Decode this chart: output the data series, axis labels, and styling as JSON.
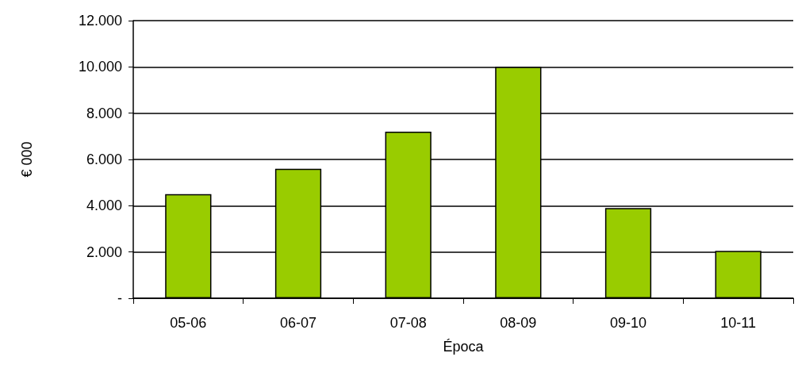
{
  "chart_data": {
    "type": "bar",
    "xlabel": "Época",
    "ylabel": "€ 000",
    "categories": [
      "05-06",
      "06-07",
      "07-08",
      "08-09",
      "09-10",
      "10-11"
    ],
    "values": [
      4500,
      5600,
      7200,
      10000,
      3900,
      2050
    ],
    "color": "#99cc00",
    "ylim": [
      0,
      12000
    ],
    "yticks": [
      {
        "value": 0,
        "label": "-"
      },
      {
        "value": 2000,
        "label": "2.000"
      },
      {
        "value": 4000,
        "label": "4.000"
      },
      {
        "value": 6000,
        "label": "6.000"
      },
      {
        "value": 8000,
        "label": "8.000"
      },
      {
        "value": 10000,
        "label": "10.000"
      },
      {
        "value": 12000,
        "label": "12.000"
      }
    ],
    "grid": "y"
  }
}
